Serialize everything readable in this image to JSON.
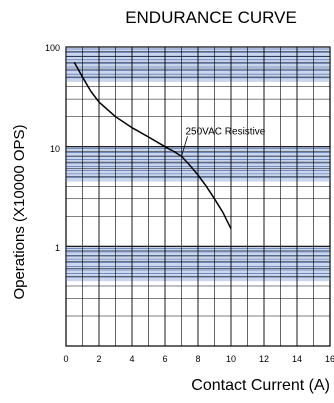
{
  "chart_data": {
    "type": "line",
    "title": "ENDURANCE CURVE",
    "xlabel": "Contact Current (A)",
    "ylabel": "Operations (X10000 OPS)",
    "x_scale": "linear",
    "y_scale": "log",
    "xlim": [
      0,
      16
    ],
    "ylim": [
      0.1,
      100
    ],
    "x_ticks": [
      0,
      2,
      4,
      6,
      8,
      10,
      12,
      14,
      16
    ],
    "y_tick_labels": [
      "100",
      "10",
      "1"
    ],
    "grid": true,
    "shaded_bands": "blue fine gridlines in the upper part of each decade",
    "series": [
      {
        "name": "250VAC Resistive",
        "color": "#000000",
        "x": [
          0.5,
          1,
          1.5,
          2,
          3,
          4,
          5,
          6,
          6.5,
          7,
          7.5,
          8,
          8.5,
          9,
          9.5,
          10
        ],
        "y": [
          70,
          50,
          36,
          28,
          20,
          15.5,
          12.5,
          10,
          9,
          8,
          6.5,
          5.2,
          4,
          3,
          2.2,
          1.5
        ]
      }
    ],
    "annotations": [
      {
        "text": "250VAC Resistive",
        "x": 7,
        "y": 8
      }
    ]
  }
}
